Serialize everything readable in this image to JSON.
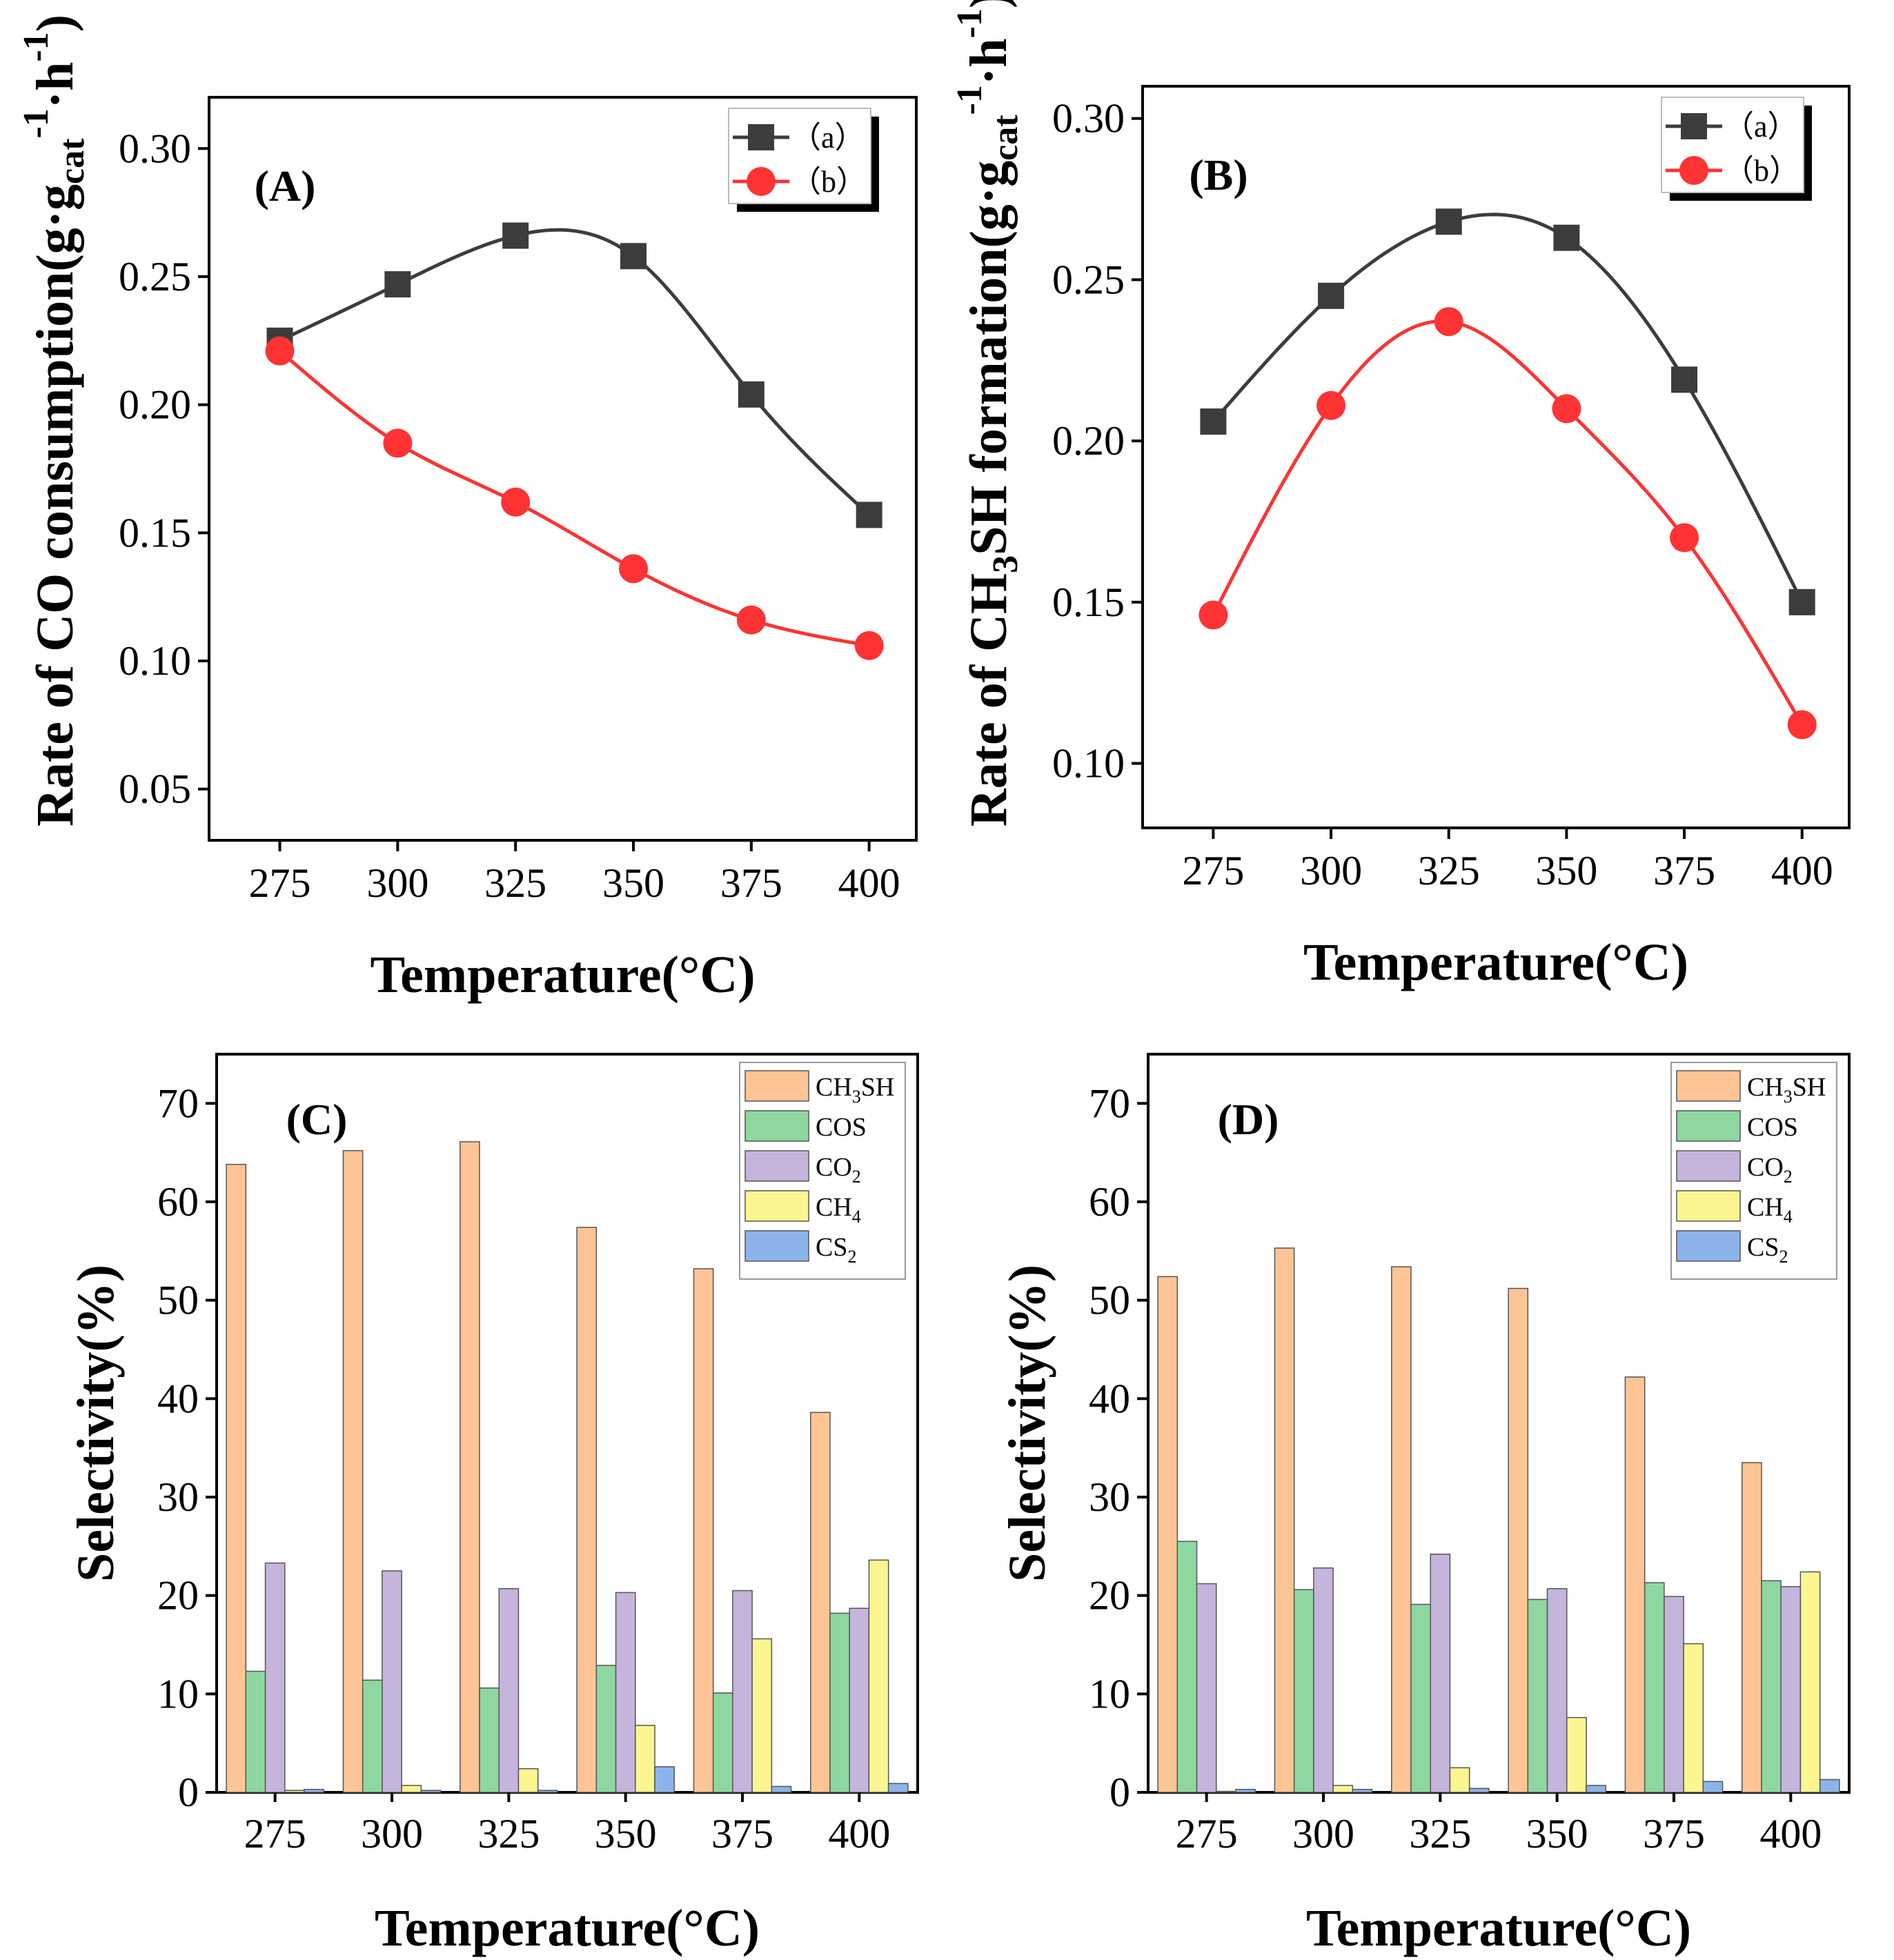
{
  "chart_data": [
    {
      "id": "A",
      "type": "line",
      "panel_label": "(A)",
      "x": [
        275,
        300,
        325,
        350,
        375,
        400
      ],
      "series": [
        {
          "name": "（a）",
          "marker": "square",
          "color": "#3c3c3c",
          "values": [
            0.225,
            0.247,
            0.266,
            0.258,
            0.204,
            0.157
          ]
        },
        {
          "name": "（b）",
          "marker": "circle",
          "color": "#ff3333",
          "values": [
            0.221,
            0.185,
            0.162,
            0.136,
            0.116,
            0.106
          ]
        }
      ],
      "xlabel": "Temperature(°C)",
      "ylabel": {
        "pre": "Rate of CO consumption(g·g",
        "sub": "cat",
        "sup1": "-1",
        "mid": "·h",
        "sup2": "-1",
        "post": ")"
      },
      "xticks": [
        "275",
        "300",
        "325",
        "350",
        "375",
        "400"
      ],
      "yticks": [
        "0.05",
        "0.10",
        "0.15",
        "0.20",
        "0.25",
        "0.30"
      ],
      "ylim": [
        0.03,
        0.32
      ],
      "xlim": [
        260,
        410
      ],
      "legend": "top-right"
    },
    {
      "id": "B",
      "type": "line",
      "panel_label": "(B)",
      "x": [
        275,
        300,
        325,
        350,
        375,
        400
      ],
      "series": [
        {
          "name": "（a）",
          "marker": "square",
          "color": "#3c3c3c",
          "values": [
            0.206,
            0.245,
            0.268,
            0.263,
            0.219,
            0.15
          ]
        },
        {
          "name": "（b）",
          "marker": "circle",
          "color": "#ff3333",
          "values": [
            0.146,
            0.211,
            0.237,
            0.21,
            0.17,
            0.112
          ]
        }
      ],
      "xlabel": "Temperature(°C)",
      "ylabel": {
        "pre": "Rate of CH",
        "sub0": "3",
        "mid0": "SH formation(g·g",
        "sub": "cat",
        "sup1": "-1",
        "mid": "·h",
        "sup2": "-1",
        "post": ")"
      },
      "xticks": [
        "275",
        "300",
        "325",
        "350",
        "375",
        "400"
      ],
      "yticks": [
        "0.10",
        "0.15",
        "0.20",
        "0.25",
        "0.30"
      ],
      "ylim": [
        0.08,
        0.31
      ],
      "xlim": [
        260,
        410
      ],
      "legend": "top-right"
    },
    {
      "id": "C",
      "type": "bar",
      "panel_label": "(C)",
      "categories": [
        "275",
        "300",
        "325",
        "350",
        "375",
        "400"
      ],
      "series": [
        {
          "name": "CH3SH",
          "label_main": "CH",
          "label_sub": "3",
          "label_tail": "SH",
          "color": "#fdc595",
          "values": [
            63.8,
            65.2,
            66.1,
            57.4,
            53.2,
            38.6
          ]
        },
        {
          "name": "COS",
          "label_main": "COS",
          "label_sub": "",
          "label_tail": "",
          "color": "#8ed7a0",
          "values": [
            12.3,
            11.4,
            10.6,
            12.9,
            10.1,
            18.2
          ]
        },
        {
          "name": "CO2",
          "label_main": "CO",
          "label_sub": "2",
          "label_tail": "",
          "color": "#c5b4db",
          "values": [
            23.3,
            22.5,
            20.7,
            20.3,
            20.5,
            18.7
          ]
        },
        {
          "name": "CH4",
          "label_main": "CH",
          "label_sub": "4",
          "label_tail": "",
          "color": "#fbf68f",
          "values": [
            0.2,
            0.7,
            2.4,
            6.8,
            15.6,
            23.6
          ]
        },
        {
          "name": "CS2",
          "label_main": "CS",
          "label_sub": "2",
          "label_tail": "",
          "color": "#8db4ea",
          "values": [
            0.3,
            0.2,
            0.2,
            2.6,
            0.6,
            0.9
          ]
        }
      ],
      "xlabel": "Temperature(°C)",
      "ylabel": "Selectivity(%)",
      "yticks": [
        "0",
        "10",
        "20",
        "30",
        "40",
        "50",
        "60",
        "70"
      ],
      "ylim": [
        0,
        75
      ],
      "legend": "top-right"
    },
    {
      "id": "D",
      "type": "bar",
      "panel_label": "(D)",
      "categories": [
        "275",
        "300",
        "325",
        "350",
        "375",
        "400"
      ],
      "series": [
        {
          "name": "CH3SH",
          "label_main": "CH",
          "label_sub": "3",
          "label_tail": "SH",
          "color": "#fdc595",
          "values": [
            52.4,
            55.3,
            53.4,
            51.2,
            42.2,
            33.5
          ]
        },
        {
          "name": "COS",
          "label_main": "COS",
          "label_sub": "",
          "label_tail": "",
          "color": "#8ed7a0",
          "values": [
            25.5,
            20.6,
            19.1,
            19.6,
            21.3,
            21.5
          ]
        },
        {
          "name": "CO2",
          "label_main": "CO",
          "label_sub": "2",
          "label_tail": "",
          "color": "#c5b4db",
          "values": [
            21.2,
            22.8,
            24.2,
            20.7,
            19.9,
            20.9
          ]
        },
        {
          "name": "CH4",
          "label_main": "CH",
          "label_sub": "4",
          "label_tail": "",
          "color": "#fbf68f",
          "values": [
            0.1,
            0.7,
            2.5,
            7.6,
            15.1,
            22.4
          ]
        },
        {
          "name": "CS2",
          "label_main": "CS",
          "label_sub": "2",
          "label_tail": "",
          "color": "#8db4ea",
          "values": [
            0.3,
            0.3,
            0.4,
            0.7,
            1.1,
            1.3
          ]
        }
      ],
      "xlabel": "Temperature(°C)",
      "ylabel": "Selectivity(%)",
      "yticks": [
        "0",
        "10",
        "20",
        "30",
        "40",
        "50",
        "60",
        "70"
      ],
      "ylim": [
        0,
        75
      ],
      "legend": "top-right"
    }
  ]
}
